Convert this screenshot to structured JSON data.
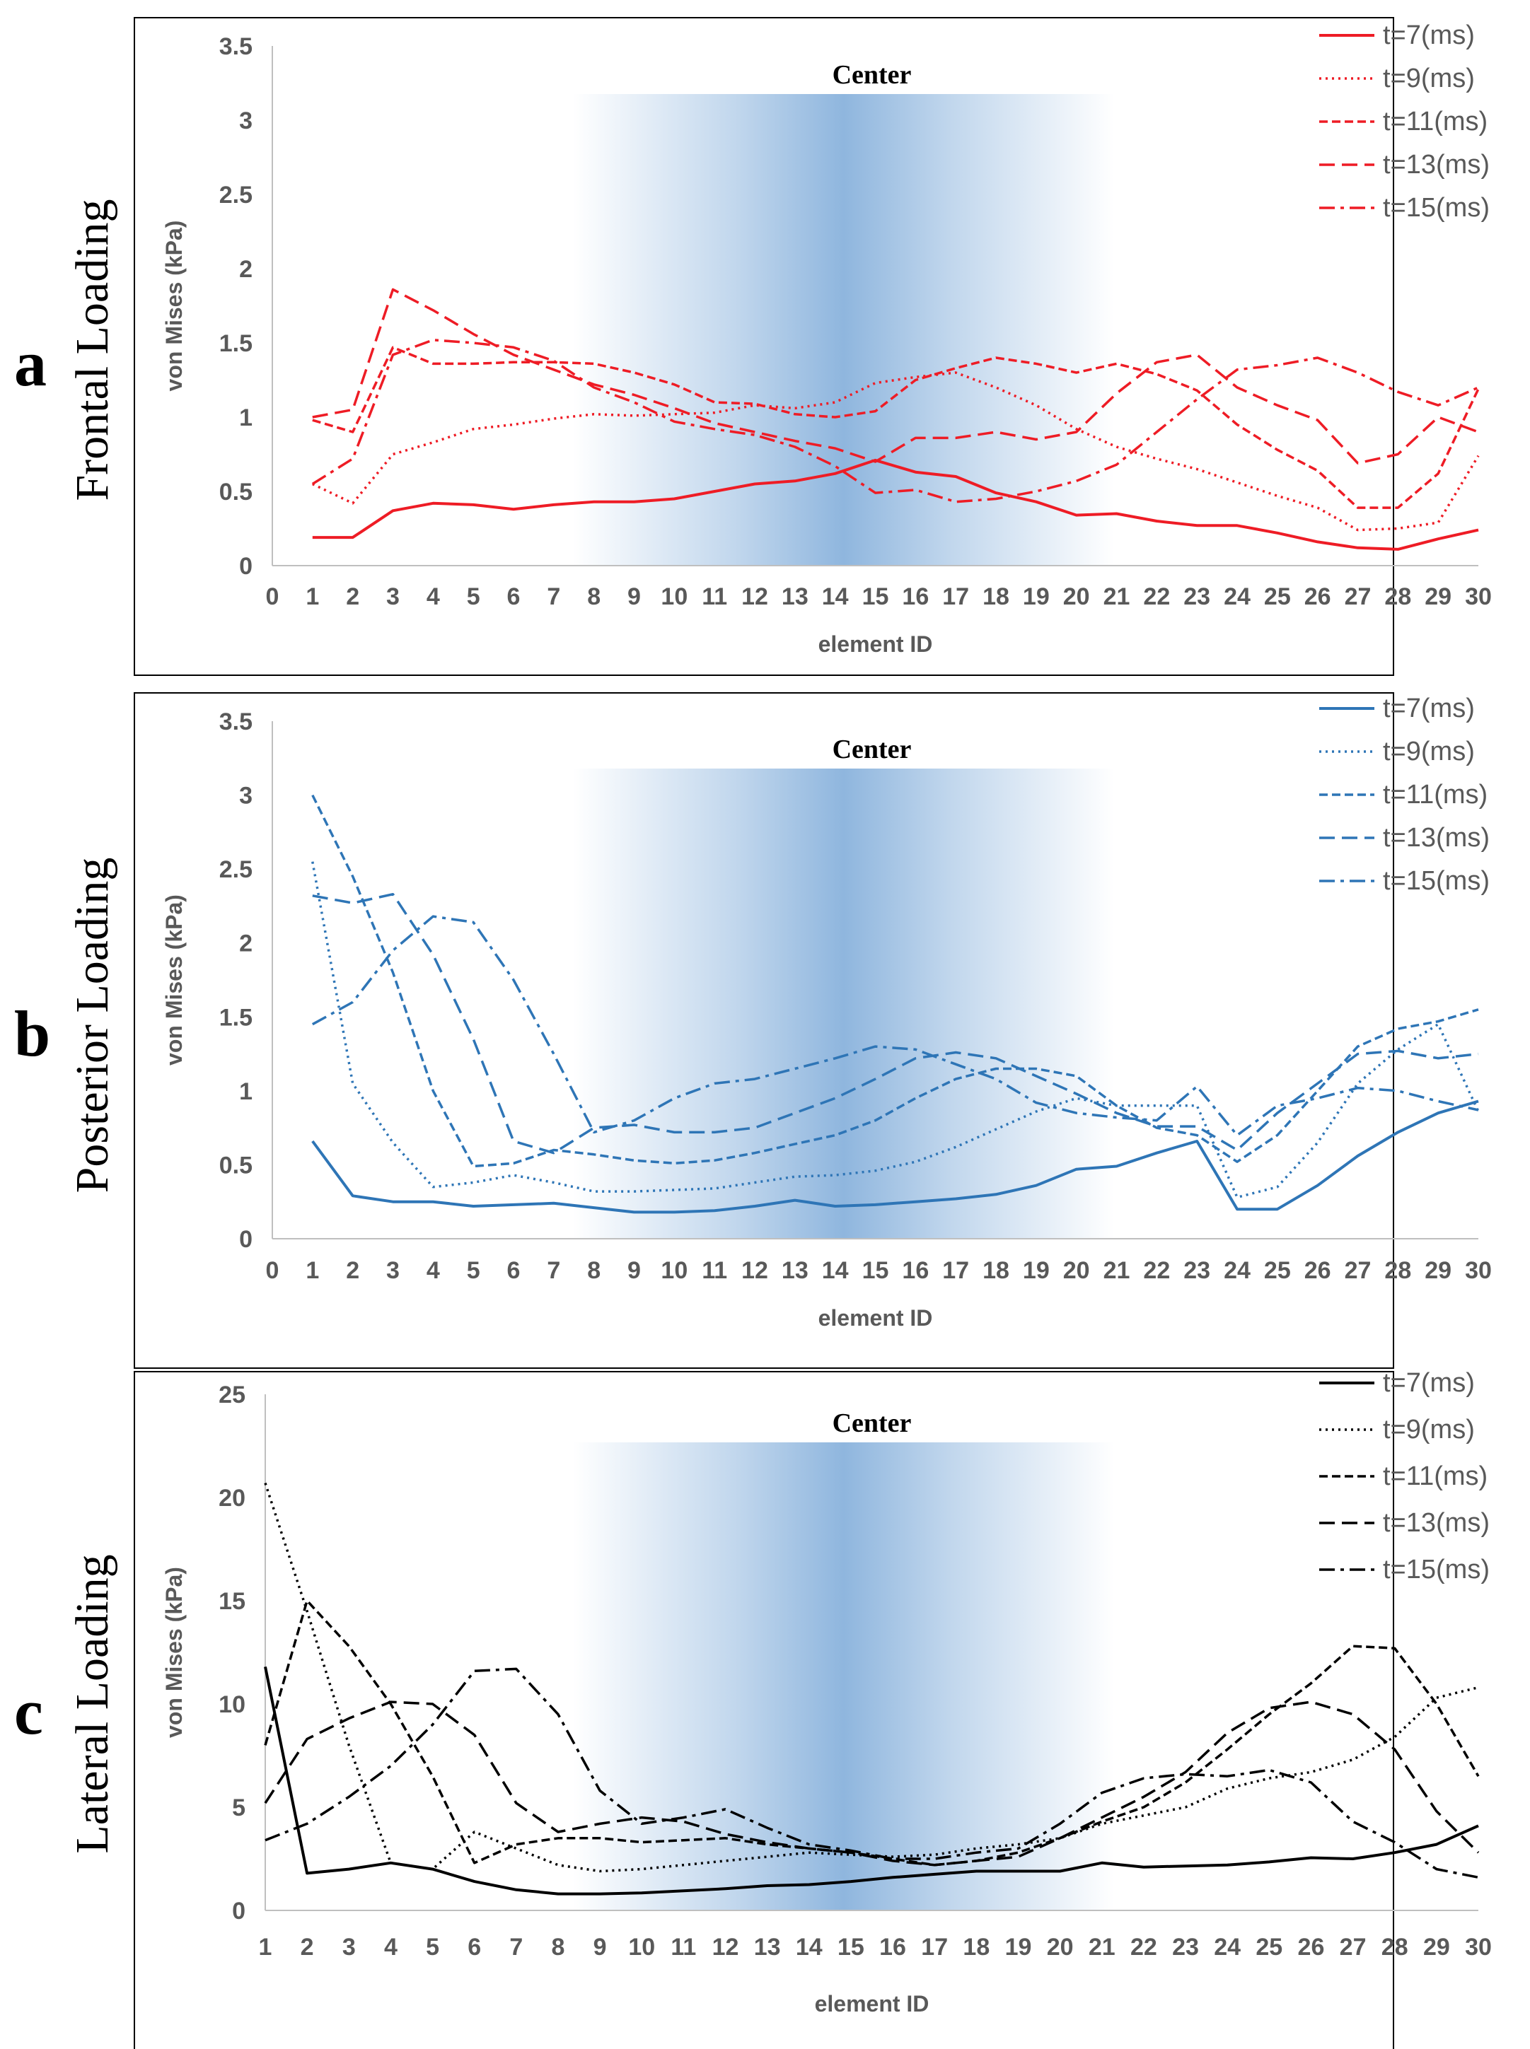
{
  "chart_data": [
    {
      "id": "a",
      "type": "line",
      "panel_letter": "a",
      "side_label": "Frontal Loading",
      "center_label": "Center",
      "xlabel": "element ID",
      "ylabel": "von Mises (kPa)",
      "xlim": [
        0,
        30
      ],
      "ylim": [
        0,
        3.5
      ],
      "x_ticks": [
        0,
        1,
        2,
        3,
        4,
        5,
        6,
        7,
        8,
        9,
        10,
        11,
        12,
        13,
        14,
        15,
        16,
        17,
        18,
        19,
        20,
        21,
        22,
        23,
        24,
        25,
        26,
        27,
        28,
        29,
        30
      ],
      "y_ticks": [
        0,
        0.5,
        1,
        1.5,
        2,
        2.5,
        3,
        3.5
      ],
      "y_tick_labels": [
        "0",
        "0.5",
        "1",
        "1.5",
        "2",
        "2.5",
        "3",
        "3.5"
      ],
      "color": "#ee1c25",
      "grid": false,
      "legend_position": "top-right",
      "x": [
        1,
        2,
        3,
        4,
        5,
        6,
        7,
        8,
        9,
        10,
        11,
        12,
        13,
        14,
        15,
        16,
        17,
        18,
        19,
        20,
        21,
        22,
        23,
        24,
        25,
        26,
        27,
        28,
        29,
        30
      ],
      "series": [
        {
          "name": "t=7(ms)",
          "dash": "solid",
          "values": [
            0.19,
            0.19,
            0.37,
            0.42,
            0.41,
            0.38,
            0.41,
            0.43,
            0.43,
            0.45,
            0.5,
            0.55,
            0.57,
            0.62,
            0.71,
            0.63,
            0.6,
            0.49,
            0.43,
            0.34,
            0.35,
            0.3,
            0.27,
            0.27,
            0.22,
            0.16,
            0.12,
            0.11,
            0.18,
            0.24
          ]
        },
        {
          "name": "t=9(ms)",
          "dash": "dot",
          "values": [
            0.55,
            0.42,
            0.75,
            0.83,
            0.92,
            0.95,
            0.99,
            1.02,
            1.01,
            1.02,
            1.03,
            1.08,
            1.06,
            1.1,
            1.23,
            1.27,
            1.3,
            1.2,
            1.08,
            0.92,
            0.8,
            0.72,
            0.65,
            0.56,
            0.47,
            0.39,
            0.24,
            0.25,
            0.29,
            0.74
          ]
        },
        {
          "name": "t=11(ms)",
          "dash": "short",
          "values": [
            0.98,
            0.9,
            1.47,
            1.36,
            1.36,
            1.37,
            1.37,
            1.36,
            1.3,
            1.22,
            1.1,
            1.09,
            1.02,
            1.0,
            1.04,
            1.25,
            1.33,
            1.4,
            1.36,
            1.3,
            1.36,
            1.29,
            1.18,
            0.95,
            0.78,
            0.64,
            0.39,
            0.39,
            0.62,
            1.19
          ]
        },
        {
          "name": "t=13(ms)",
          "dash": "long",
          "values": [
            1.0,
            1.05,
            1.86,
            1.72,
            1.56,
            1.42,
            1.32,
            1.22,
            1.15,
            1.06,
            0.96,
            0.9,
            0.84,
            0.79,
            0.7,
            0.86,
            0.86,
            0.9,
            0.85,
            0.9,
            1.16,
            1.37,
            1.42,
            1.2,
            1.08,
            0.98,
            0.69,
            0.75,
            1.0,
            0.9
          ]
        },
        {
          "name": "t=15(ms)",
          "dash": "dashdot",
          "values": [
            0.55,
            0.72,
            1.42,
            1.52,
            1.5,
            1.47,
            1.38,
            1.2,
            1.1,
            0.97,
            0.92,
            0.88,
            0.8,
            0.67,
            0.49,
            0.51,
            0.43,
            0.45,
            0.5,
            0.57,
            0.68,
            0.9,
            1.12,
            1.32,
            1.35,
            1.4,
            1.3,
            1.17,
            1.08,
            1.2
          ]
        }
      ]
    },
    {
      "id": "b",
      "type": "line",
      "panel_letter": "b",
      "side_label": "Posterior Loading",
      "center_label": "Center",
      "xlabel": "element ID",
      "ylabel": "von Mises (kPa)",
      "xlim": [
        0,
        30
      ],
      "ylim": [
        0,
        3.5
      ],
      "x_ticks": [
        0,
        1,
        2,
        3,
        4,
        5,
        6,
        7,
        8,
        9,
        10,
        11,
        12,
        13,
        14,
        15,
        16,
        17,
        18,
        19,
        20,
        21,
        22,
        23,
        24,
        25,
        26,
        27,
        28,
        29,
        30
      ],
      "y_ticks": [
        0,
        0.5,
        1,
        1.5,
        2,
        2.5,
        3,
        3.5
      ],
      "y_tick_labels": [
        "0",
        "0.5",
        "1",
        "1.5",
        "2",
        "2.5",
        "3",
        "3.5"
      ],
      "color": "#2e75b6",
      "grid": false,
      "legend_position": "top-right",
      "x": [
        1,
        2,
        3,
        4,
        5,
        6,
        7,
        8,
        9,
        10,
        11,
        12,
        13,
        14,
        15,
        16,
        17,
        18,
        19,
        20,
        21,
        22,
        23,
        24,
        25,
        26,
        27,
        28,
        29,
        30
      ],
      "series": [
        {
          "name": "t=7(ms)",
          "dash": "solid",
          "values": [
            0.66,
            0.29,
            0.25,
            0.25,
            0.22,
            0.23,
            0.24,
            0.21,
            0.18,
            0.18,
            0.19,
            0.22,
            0.26,
            0.22,
            0.23,
            0.25,
            0.27,
            0.3,
            0.36,
            0.47,
            0.49,
            0.58,
            0.66,
            0.2,
            0.2,
            0.36,
            0.56,
            0.72,
            0.85,
            0.93
          ]
        },
        {
          "name": "t=9(ms)",
          "dash": "dot",
          "values": [
            2.55,
            1.05,
            0.65,
            0.35,
            0.38,
            0.43,
            0.38,
            0.32,
            0.32,
            0.33,
            0.34,
            0.38,
            0.42,
            0.43,
            0.46,
            0.52,
            0.62,
            0.74,
            0.86,
            0.95,
            0.9,
            0.9,
            0.9,
            0.28,
            0.35,
            0.65,
            1.05,
            1.28,
            1.45,
            0.86
          ]
        },
        {
          "name": "t=11(ms)",
          "dash": "short",
          "values": [
            3.0,
            2.45,
            1.8,
            1.0,
            0.49,
            0.51,
            0.6,
            0.57,
            0.53,
            0.51,
            0.53,
            0.58,
            0.64,
            0.7,
            0.8,
            0.95,
            1.08,
            1.15,
            1.15,
            1.1,
            0.9,
            0.75,
            0.7,
            0.52,
            0.7,
            1.0,
            1.3,
            1.42,
            1.47,
            1.55
          ]
        },
        {
          "name": "t=13(ms)",
          "dash": "long",
          "values": [
            2.32,
            2.27,
            2.33,
            1.92,
            1.35,
            0.66,
            0.58,
            0.75,
            0.77,
            0.72,
            0.72,
            0.75,
            0.85,
            0.95,
            1.08,
            1.22,
            1.26,
            1.22,
            1.1,
            0.98,
            0.85,
            0.76,
            0.76,
            0.6,
            0.85,
            1.05,
            1.25,
            1.27,
            1.22,
            1.25
          ]
        },
        {
          "name": "t=15(ms)",
          "dash": "dashdot",
          "values": [
            1.45,
            1.6,
            1.95,
            2.18,
            2.14,
            1.75,
            1.25,
            0.72,
            0.8,
            0.95,
            1.05,
            1.08,
            1.15,
            1.22,
            1.3,
            1.28,
            1.18,
            1.08,
            0.92,
            0.85,
            0.82,
            0.8,
            1.03,
            0.7,
            0.9,
            0.95,
            1.02,
            1.0,
            0.93,
            0.87
          ]
        }
      ]
    },
    {
      "id": "c",
      "type": "line",
      "panel_letter": "c",
      "side_label": "Lateral Loading",
      "center_label": "Center",
      "xlabel": "element ID",
      "ylabel": "von Mises (kPa)",
      "xlim": [
        1,
        30
      ],
      "ylim": [
        0,
        25
      ],
      "x_ticks": [
        1,
        2,
        3,
        4,
        5,
        6,
        7,
        8,
        9,
        10,
        11,
        12,
        13,
        14,
        15,
        16,
        17,
        18,
        19,
        20,
        21,
        22,
        23,
        24,
        25,
        26,
        27,
        28,
        29,
        30
      ],
      "y_ticks": [
        0,
        5,
        10,
        15,
        20,
        25
      ],
      "y_tick_labels": [
        "0",
        "5",
        "10",
        "15",
        "20",
        "25"
      ],
      "color": "#000000",
      "grid": false,
      "legend_position": "top-right",
      "x": [
        1,
        2,
        3,
        4,
        5,
        6,
        7,
        8,
        9,
        10,
        11,
        12,
        13,
        14,
        15,
        16,
        17,
        18,
        19,
        20,
        21,
        22,
        23,
        24,
        25,
        26,
        27,
        28,
        29,
        30
      ],
      "series": [
        {
          "name": "t=7(ms)",
          "dash": "solid",
          "values": [
            11.8,
            1.8,
            2.0,
            2.3,
            2.0,
            1.4,
            1.0,
            0.8,
            0.8,
            0.85,
            0.95,
            1.05,
            1.2,
            1.25,
            1.4,
            1.6,
            1.75,
            1.9,
            1.9,
            1.9,
            2.3,
            2.1,
            2.15,
            2.2,
            2.35,
            2.55,
            2.5,
            2.8,
            3.2,
            4.1
          ]
        },
        {
          "name": "t=9(ms)",
          "dash": "dot",
          "values": [
            20.7,
            14.5,
            8.0,
            2.3,
            2.0,
            3.8,
            3.0,
            2.2,
            1.9,
            2.0,
            2.2,
            2.4,
            2.6,
            2.8,
            2.7,
            2.6,
            2.7,
            3.0,
            3.2,
            3.5,
            4.2,
            4.6,
            5.0,
            5.9,
            6.4,
            6.7,
            7.3,
            8.4,
            10.3,
            10.8
          ]
        },
        {
          "name": "t=11(ms)",
          "dash": "short",
          "values": [
            8.0,
            15.0,
            12.8,
            10.0,
            6.5,
            2.3,
            3.2,
            3.5,
            3.5,
            3.3,
            3.4,
            3.5,
            3.2,
            3.0,
            2.8,
            2.5,
            2.2,
            2.4,
            2.8,
            3.5,
            4.3,
            5.0,
            6.2,
            7.8,
            9.5,
            11.0,
            12.8,
            12.7,
            10.0,
            6.5
          ]
        },
        {
          "name": "t=13(ms)",
          "dash": "long",
          "values": [
            5.2,
            8.3,
            9.3,
            10.1,
            10.0,
            8.5,
            5.2,
            3.8,
            4.2,
            4.5,
            4.3,
            3.7,
            3.3,
            3.0,
            2.8,
            2.4,
            2.2,
            2.4,
            2.6,
            3.5,
            4.5,
            5.5,
            6.7,
            8.6,
            9.8,
            10.1,
            9.5,
            7.8,
            4.8,
            2.8
          ]
        },
        {
          "name": "t=15(ms)",
          "dash": "dashdot",
          "values": [
            3.4,
            4.2,
            5.5,
            7.0,
            9.0,
            11.6,
            11.7,
            9.5,
            5.8,
            4.2,
            4.5,
            4.9,
            4.0,
            3.2,
            2.9,
            2.5,
            2.5,
            2.8,
            3.0,
            4.2,
            5.7,
            6.4,
            6.6,
            6.5,
            6.8,
            6.2,
            4.3,
            3.3,
            2.0,
            1.6
          ]
        }
      ]
    }
  ]
}
